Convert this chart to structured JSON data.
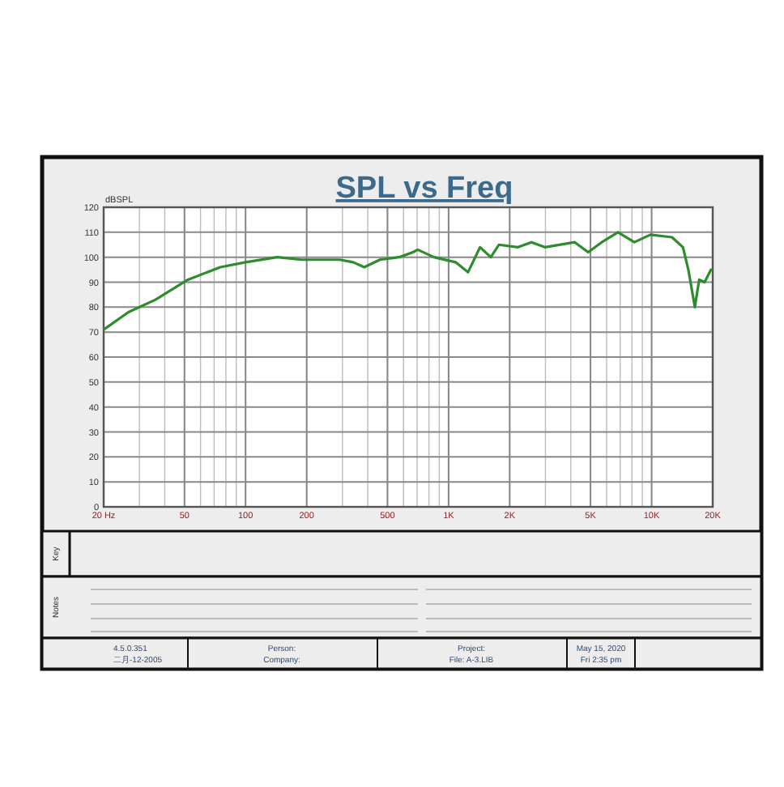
{
  "chart_data": {
    "type": "line",
    "title": "SPL vs Freq",
    "ylabel": "dBSPL",
    "log": "x",
    "xlim": [
      20,
      20000
    ],
    "xticks": [
      {
        "value": 20,
        "label": "20  Hz"
      },
      50,
      100,
      200,
      500,
      {
        "value": 1000,
        "label": "1K"
      },
      {
        "value": 2000,
        "label": "2K"
      },
      {
        "value": 5000,
        "label": "5K"
      },
      {
        "value": 10000,
        "label": "10K"
      },
      {
        "value": 20000,
        "label": "20K"
      }
    ],
    "ylim": [
      0,
      120
    ],
    "yticks": [
      0,
      10,
      20,
      30,
      40,
      50,
      60,
      70,
      80,
      90,
      100,
      110,
      120
    ],
    "grid": true,
    "series": [
      {
        "color": "#2e8b2e",
        "x": [
          20,
          26.5,
          36,
          52,
          75,
          100,
          143,
          189,
          291,
          339,
          384,
          459,
          570,
          667,
          705,
          847,
          1083,
          1247,
          1428,
          1614,
          1770,
          2195,
          2560,
          2980,
          4180,
          4870,
          5680,
          6830,
          8220,
          9870,
          12600,
          14270,
          15170,
          16330,
          17150,
          18240,
          19610,
          20000
        ],
        "values": [
          71,
          78,
          83,
          91,
          96,
          98,
          100,
          99,
          99,
          98,
          96,
          99,
          100,
          102,
          103,
          100,
          98,
          94,
          104,
          100,
          105,
          104,
          106,
          104,
          106,
          102,
          106,
          110,
          106,
          109,
          108,
          104,
          95,
          80,
          91,
          90,
          95,
          95
        ]
      }
    ],
    "annotations": [
      "Key",
      "Notes",
      "4.5.0.351",
      "二月-12-2005",
      "Person:",
      "Company:",
      "Project:",
      "File: A-3.LIB",
      "May 15, 2020",
      "Fri  2:35 pm"
    ]
  }
}
